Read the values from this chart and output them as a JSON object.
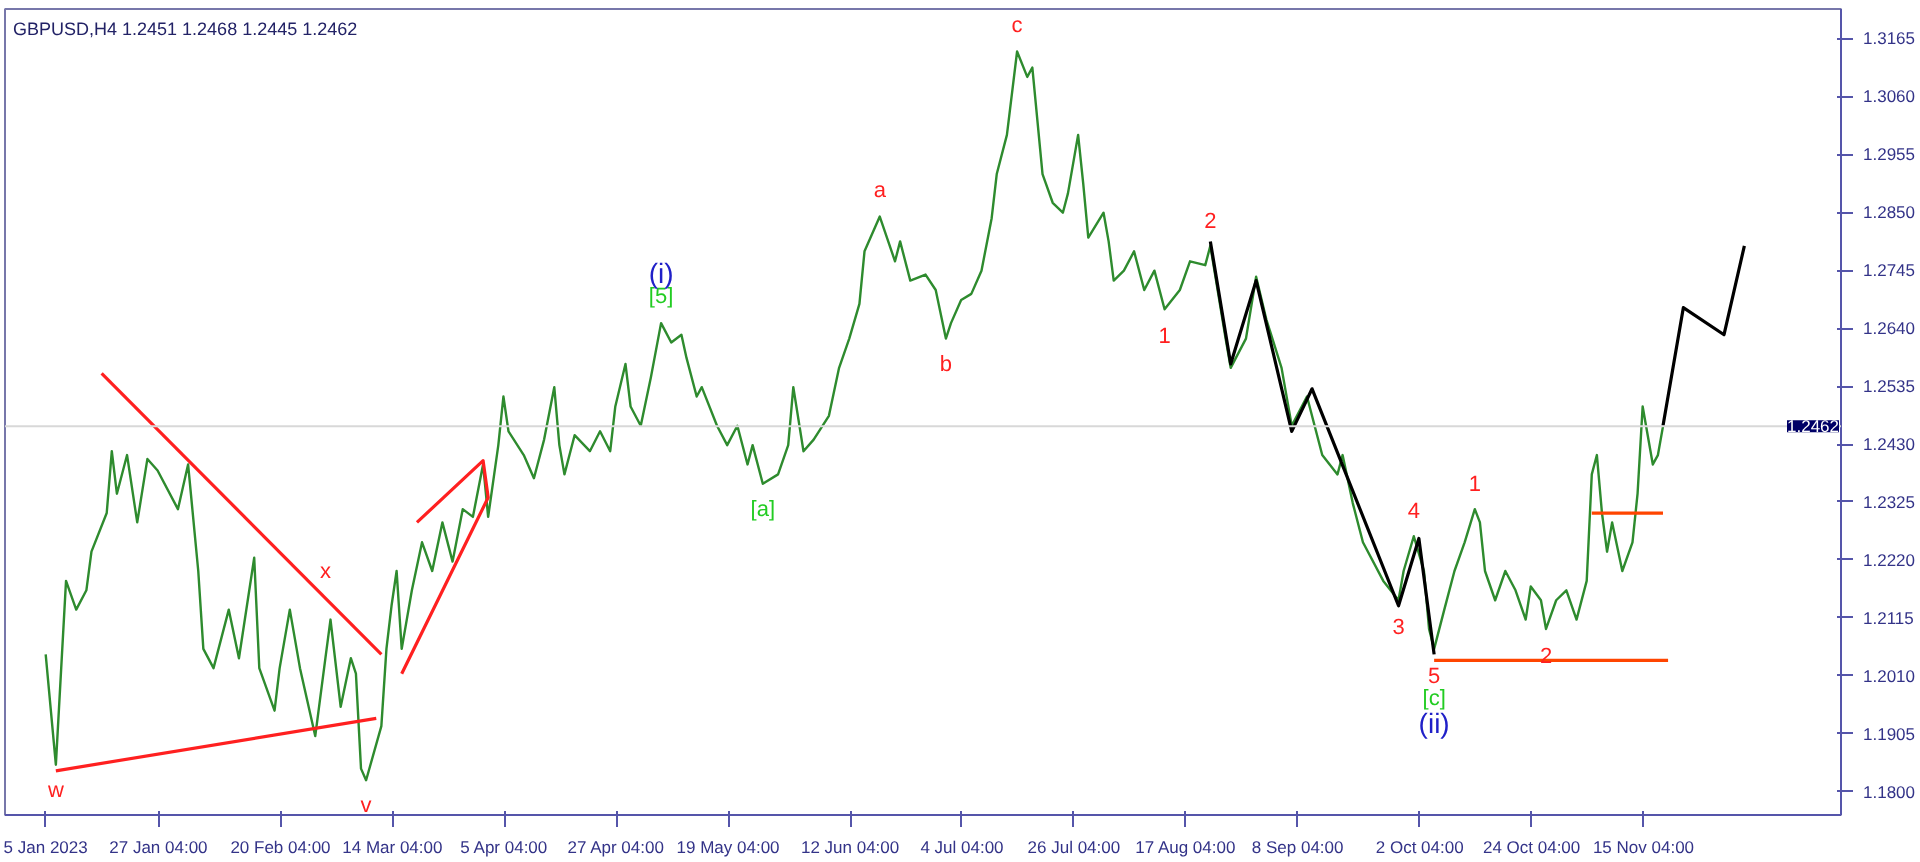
{
  "chart_data": {
    "type": "line",
    "title": "GBPUSD,H4  1.2451 1.2468 1.2445 1.2462",
    "xlim": [
      "2022-12-28",
      "2023-12-24"
    ],
    "ylim": [
      1.1758,
      1.3218
    ],
    "xticks": [
      {
        "value": "2023-01-05",
        "label": "5 Jan 2023"
      },
      {
        "value": "2023-01-27T04:00",
        "label": "27 Jan 04:00"
      },
      {
        "value": "2023-02-20T04:00",
        "label": "20 Feb 04:00"
      },
      {
        "value": "2023-03-14T04:00",
        "label": "14 Mar 04:00"
      },
      {
        "value": "2023-04-05T04:00",
        "label": "5 Apr 04:00"
      },
      {
        "value": "2023-04-27T04:00",
        "label": "27 Apr 04:00"
      },
      {
        "value": "2023-05-19T04:00",
        "label": "19 May 04:00"
      },
      {
        "value": "2023-06-12T04:00",
        "label": "12 Jun 04:00"
      },
      {
        "value": "2023-07-04T04:00",
        "label": "4 Jul 04:00"
      },
      {
        "value": "2023-07-26T04:00",
        "label": "26 Jul 04:00"
      },
      {
        "value": "2023-08-17T04:00",
        "label": "17 Aug 04:00"
      },
      {
        "value": "2023-09-08T04:00",
        "label": "8 Sep 04:00"
      },
      {
        "value": "2023-10-02T04:00",
        "label": "2 Oct 04:00"
      },
      {
        "value": "2023-10-24T04:00",
        "label": "24 Oct 04:00"
      },
      {
        "value": "2023-11-15T04:00",
        "label": "15 Nov 04:00"
      }
    ],
    "yticks": [
      {
        "value": 1.18,
        "label": "1.1800"
      },
      {
        "value": 1.1905,
        "label": "1.1905"
      },
      {
        "value": 1.201,
        "label": "1.2010"
      },
      {
        "value": 1.2115,
        "label": "1.2115"
      },
      {
        "value": 1.222,
        "label": "1.2220"
      },
      {
        "value": 1.2325,
        "label": "1.2325"
      },
      {
        "value": 1.243,
        "label": "1.2430"
      },
      {
        "value": 1.2535,
        "label": "1.2535"
      },
      {
        "value": 1.264,
        "label": "1.2640"
      },
      {
        "value": 1.2745,
        "label": "1.2745"
      },
      {
        "value": 1.285,
        "label": "1.2850"
      },
      {
        "value": 1.2955,
        "label": "1.2955"
      },
      {
        "value": 1.306,
        "label": "1.3060"
      },
      {
        "value": 1.3165,
        "label": "1.3165"
      }
    ],
    "series": [
      {
        "color": "#2e8b2e",
        "x": [
          "2023-01-05",
          "2023-01-07",
          "2023-01-09",
          "2023-01-11",
          "2023-01-13",
          "2023-01-14",
          "2023-01-17",
          "2023-01-18",
          "2023-01-19",
          "2023-01-21",
          "2023-01-23",
          "2023-01-25",
          "2023-01-27",
          "2023-01-31",
          "2023-02-02",
          "2023-02-04",
          "2023-02-05",
          "2023-02-07",
          "2023-02-10",
          "2023-02-12",
          "2023-02-15",
          "2023-02-16",
          "2023-02-19",
          "2023-02-20",
          "2023-02-22",
          "2023-02-24",
          "2023-02-27",
          "2023-03-01",
          "2023-03-02",
          "2023-03-04",
          "2023-03-06",
          "2023-03-07",
          "2023-03-08",
          "2023-03-09",
          "2023-03-12",
          "2023-03-13",
          "2023-03-14",
          "2023-03-15",
          "2023-03-16",
          "2023-03-18",
          "2023-03-20",
          "2023-03-22",
          "2023-03-24",
          "2023-03-26",
          "2023-03-28",
          "2023-03-30",
          "2023-04-01",
          "2023-04-02",
          "2023-04-04",
          "2023-04-05",
          "2023-04-06",
          "2023-04-09",
          "2023-04-11",
          "2023-04-13",
          "2023-04-15",
          "2023-04-16",
          "2023-04-17",
          "2023-04-19",
          "2023-04-22",
          "2023-04-24",
          "2023-04-26",
          "2023-04-27",
          "2023-04-29",
          "2023-04-30",
          "2023-05-02",
          "2023-05-04",
          "2023-05-06",
          "2023-05-08",
          "2023-05-10",
          "2023-05-11",
          "2023-05-13",
          "2023-05-14",
          "2023-05-17",
          "2023-05-19",
          "2023-05-21",
          "2023-05-23",
          "2023-05-24",
          "2023-05-26",
          "2023-05-29",
          "2023-05-31",
          "2023-06-01",
          "2023-06-03",
          "2023-06-05",
          "2023-06-08",
          "2023-06-10",
          "2023-06-12",
          "2023-06-14",
          "2023-06-15",
          "2023-06-18",
          "2023-06-21",
          "2023-06-22",
          "2023-06-24",
          "2023-06-27",
          "2023-06-29",
          "2023-07-01",
          "2023-07-02",
          "2023-07-04",
          "2023-07-06",
          "2023-07-08",
          "2023-07-10",
          "2023-07-11",
          "2023-07-13",
          "2023-07-15",
          "2023-07-17",
          "2023-07-18",
          "2023-07-20",
          "2023-07-22",
          "2023-07-24",
          "2023-07-25",
          "2023-07-27",
          "2023-07-28",
          "2023-07-29",
          "2023-08-01",
          "2023-08-02",
          "2023-08-03",
          "2023-08-05",
          "2023-08-07",
          "2023-08-09",
          "2023-08-11",
          "2023-08-13",
          "2023-08-16",
          "2023-08-18",
          "2023-08-21",
          "2023-08-22",
          "2023-08-25",
          "2023-08-26",
          "2023-08-29",
          "2023-08-31",
          "2023-09-02",
          "2023-09-05",
          "2023-09-07",
          "2023-09-10",
          "2023-09-13",
          "2023-09-16",
          "2023-09-17",
          "2023-09-19",
          "2023-09-21",
          "2023-09-25",
          "2023-09-28",
          "2023-09-29",
          "2023-10-01",
          "2023-10-03",
          "2023-10-04",
          "2023-10-05",
          "2023-10-07",
          "2023-10-09",
          "2023-10-11",
          "2023-10-13",
          "2023-10-14",
          "2023-10-15",
          "2023-10-17",
          "2023-10-19",
          "2023-10-21",
          "2023-10-23",
          "2023-10-24",
          "2023-10-26",
          "2023-10-27",
          "2023-10-29",
          "2023-10-31",
          "2023-11-02",
          "2023-11-04",
          "2023-11-05",
          "2023-11-06",
          "2023-11-07",
          "2023-11-08",
          "2023-11-09",
          "2023-11-11",
          "2023-11-13",
          "2023-11-14",
          "2023-11-15",
          "2023-11-17",
          "2023-11-18",
          "2023-11-19"
        ],
        "values": [
          1.2049,
          1.1849,
          1.2182,
          1.213,
          1.2165,
          1.2235,
          1.2305,
          1.2417,
          1.234,
          1.241,
          1.2288,
          1.2403,
          1.2382,
          1.2312,
          1.2393,
          1.22,
          1.2059,
          1.2024,
          1.213,
          1.2042,
          1.2224,
          1.2024,
          1.1947,
          1.2024,
          1.213,
          1.2024,
          1.1901,
          1.2042,
          1.2112,
          1.1954,
          1.2042,
          1.2014,
          1.1842,
          1.1821,
          1.1919,
          1.2059,
          1.2137,
          1.22,
          1.2059,
          1.2165,
          1.2252,
          1.22,
          1.2288,
          1.2217,
          1.2312,
          1.2298,
          1.2393,
          1.2298,
          1.2428,
          1.2516,
          1.2453,
          1.241,
          1.2368,
          1.2438,
          1.2533,
          1.2428,
          1.2375,
          1.2446,
          1.2417,
          1.2453,
          1.2417,
          1.2498,
          1.2575,
          1.2498,
          1.2463,
          1.2551,
          1.2649,
          1.2614,
          1.2628,
          1.2586,
          1.2516,
          1.2533,
          1.2463,
          1.2428,
          1.2463,
          1.2393,
          1.2428,
          1.2358,
          1.2375,
          1.2428,
          1.2533,
          1.2417,
          1.2438,
          1.2481,
          1.2568,
          1.2621,
          1.2684,
          1.2779,
          1.2842,
          1.2761,
          1.2797,
          1.2726,
          1.2737,
          1.2709,
          1.2621,
          1.2649,
          1.2691,
          1.2702,
          1.2744,
          1.2839,
          1.2919,
          1.299,
          1.3141,
          1.3095,
          1.3112,
          1.2919,
          1.2867,
          1.2849,
          1.2884,
          1.299,
          1.2902,
          1.2804,
          1.2849,
          1.2797,
          1.2726,
          1.2744,
          1.2779,
          1.2709,
          1.2744,
          1.2674,
          1.2709,
          1.2761,
          1.2754,
          1.2789,
          1.2621,
          1.2568,
          1.2621,
          1.2733,
          1.2656,
          1.2568,
          1.2463,
          1.2516,
          1.241,
          1.2375,
          1.241,
          1.2323,
          1.2252,
          1.2182,
          1.2147,
          1.22,
          1.2263,
          1.22,
          1.2095,
          1.2059,
          1.213,
          1.22,
          1.2252,
          1.2312,
          1.2288,
          1.22,
          1.2147,
          1.22,
          1.2165,
          1.2112,
          1.2172,
          1.2147,
          1.2095,
          1.2147,
          1.2165,
          1.2112,
          1.2182,
          1.2375,
          1.241,
          1.2305,
          1.2235,
          1.2288,
          1.22,
          1.2252,
          1.234,
          1.2498,
          1.2393,
          1.241,
          1.2462
        ]
      },
      {
        "color": "#000000",
        "x": [
          "2023-08-22",
          "2023-08-26",
          "2023-08-31",
          "2023-09-07",
          "2023-09-11",
          "2023-09-28",
          "2023-10-02",
          "2023-10-05"
        ],
        "values": [
          1.2797,
          1.2575,
          1.2726,
          1.2453,
          1.253,
          1.2137,
          1.2259,
          1.2049
        ]
      },
      {
        "color": "#000000",
        "x": [
          "2023-11-19",
          "2023-11-23",
          "2023-12-01",
          "2023-12-05"
        ],
        "values": [
          1.2463,
          1.2677,
          1.2628,
          1.2789
        ]
      },
      {
        "color": "#ff2020",
        "x": [
          "2023-01-16",
          "2023-03-12"
        ],
        "values": [
          1.2558,
          1.2049
        ]
      },
      {
        "color": "#ff2020",
        "x": [
          "2023-01-07",
          "2023-03-11"
        ],
        "values": [
          1.1838,
          1.1933
        ]
      },
      {
        "color": "#ff2020",
        "x": [
          "2023-03-19",
          "2023-04-01",
          "2023-04-02",
          "2023-03-16"
        ],
        "values": [
          1.2288,
          1.24,
          1.2333,
          1.2014
        ]
      },
      {
        "color": "#ff4500",
        "x": [
          "2023-10-05",
          "2023-11-20"
        ],
        "values": [
          1.2038,
          1.2038
        ]
      },
      {
        "color": "#ff4500",
        "x": [
          "2023-11-05",
          "2023-11-19"
        ],
        "values": [
          1.2305,
          1.2305
        ]
      }
    ],
    "ref_lines": [
      {
        "axis": "y",
        "value": 1.2462,
        "label": "1.2462",
        "color": "#d8d8d8"
      }
    ],
    "annotations": [
      {
        "text": "w",
        "x": "2023-01-07",
        "y": 1.1849
      },
      {
        "text": "x",
        "x": "2023-03-01",
        "y": 1.2151
      },
      {
        "text": "v",
        "x": "2023-03-09",
        "y": 1.1821
      },
      {
        "text": "[5]",
        "x": "2023-05-06",
        "y": 1.2649
      },
      {
        "text": "(i)",
        "x": "2023-05-06",
        "y": 1.2649
      },
      {
        "text": "[a]",
        "x": "2023-05-26",
        "y": 1.2358
      },
      {
        "text": "a",
        "x": "2023-06-18",
        "y": 1.2842
      },
      {
        "text": "b",
        "x": "2023-07-01",
        "y": 1.2621
      },
      {
        "text": "c",
        "x": "2023-07-15",
        "y": 1.3141
      },
      {
        "text": "1",
        "x": "2023-08-13",
        "y": 1.2674
      },
      {
        "text": "2",
        "x": "2023-08-22",
        "y": 1.2789
      },
      {
        "text": "3",
        "x": "2023-09-28",
        "y": 1.2147
      },
      {
        "text": "4",
        "x": "2023-10-01",
        "y": 1.2263
      },
      {
        "text": "5",
        "x": "2023-10-05",
        "y": 1.2059
      },
      {
        "text": "[c]",
        "x": "2023-10-05",
        "y": 1.2059
      },
      {
        "text": "(ii)",
        "x": "2023-10-05",
        "y": 1.2059
      },
      {
        "text": "1",
        "x": "2023-10-13",
        "y": 1.2312
      },
      {
        "text": "2",
        "x": "2023-10-27",
        "y": 1.2095
      }
    ]
  }
}
